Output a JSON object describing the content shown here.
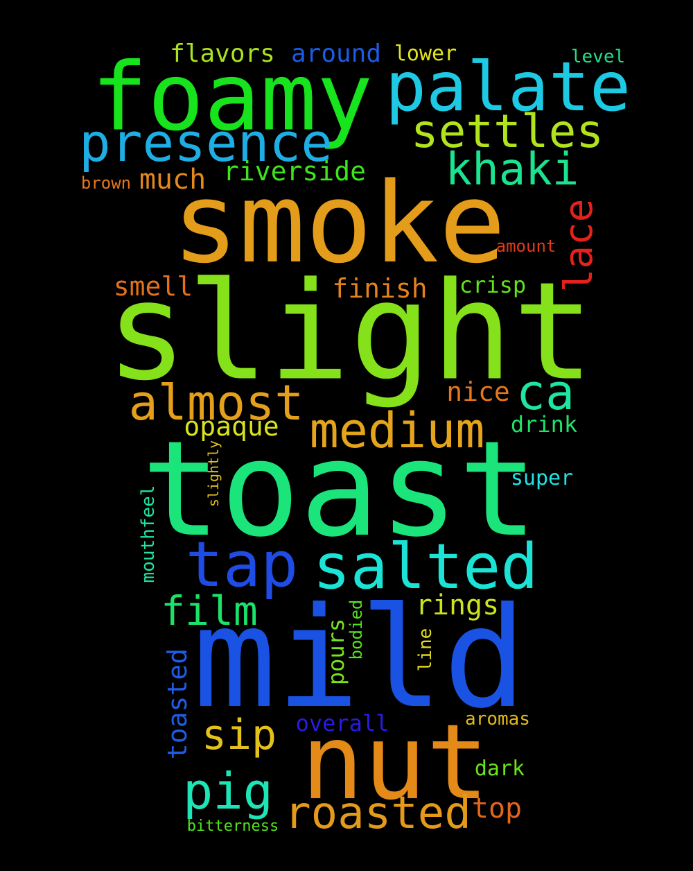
{
  "words": {
    "slight": {
      "text": "slight",
      "color": "#84e11a"
    },
    "smoke": {
      "text": "smoke",
      "color": "#e49c1b"
    },
    "toast": {
      "text": "toast",
      "color": "#1be57a"
    },
    "mild": {
      "text": "mild",
      "color": "#1a53e4"
    },
    "foamy": {
      "text": "foamy",
      "color": "#17e41c"
    },
    "nut": {
      "text": "nut",
      "color": "#e48a18"
    },
    "palate": {
      "text": "palate",
      "color": "#1ec9e4"
    },
    "presence": {
      "text": "presence",
      "color": "#1eaee4"
    },
    "settles": {
      "text": "settles",
      "color": "#b2e41b"
    },
    "khaki": {
      "text": "khaki",
      "color": "#1ce391"
    },
    "salted": {
      "text": "salted",
      "color": "#1be3d6"
    },
    "tap": {
      "text": "tap",
      "color": "#1f4ce4"
    },
    "medium": {
      "text": "medium",
      "color": "#e4a41c"
    },
    "almost": {
      "text": "almost",
      "color": "#e4a01b"
    },
    "ca": {
      "text": "ca",
      "color": "#1fe4a4"
    },
    "roasted": {
      "text": "roasted",
      "color": "#e49a1a"
    },
    "pig": {
      "text": "pig",
      "color": "#1ee4b6"
    },
    "lace": {
      "text": "lace",
      "color": "#e4211b"
    },
    "film": {
      "text": "film",
      "color": "#1be36a"
    },
    "sip": {
      "text": "sip",
      "color": "#e4c21c"
    },
    "riverside": {
      "text": "riverside",
      "color": "#3ee41c"
    },
    "much": {
      "text": "much",
      "color": "#e4891a"
    },
    "smell": {
      "text": "smell",
      "color": "#e4701b"
    },
    "finish": {
      "text": "finish",
      "color": "#e4831b"
    },
    "opaque": {
      "text": "opaque",
      "color": "#d9e41c"
    },
    "toasted": {
      "text": "toasted",
      "color": "#1f5be4"
    },
    "rings": {
      "text": "rings",
      "color": "#cce41c"
    },
    "top": {
      "text": "top",
      "color": "#e4661b"
    },
    "flavors": {
      "text": "flavors",
      "color": "#a9e41c"
    },
    "around": {
      "text": "around",
      "color": "#1b5ce4"
    },
    "nice": {
      "text": "nice",
      "color": "#e4761b"
    },
    "crisp": {
      "text": "crisp",
      "color": "#62e41c"
    },
    "drink": {
      "text": "drink",
      "color": "#1fe46a"
    },
    "pours": {
      "text": "pours",
      "color": "#7ae41c"
    },
    "overall": {
      "text": "overall",
      "color": "#2a1ce4"
    },
    "super": {
      "text": "super",
      "color": "#1fe4e4"
    },
    "lower": {
      "text": "lower",
      "color": "#e4e41c"
    },
    "dark": {
      "text": "dark",
      "color": "#6ae41c"
    },
    "aromas": {
      "text": "aromas",
      "color": "#e4ba1c"
    },
    "mouthfeel": {
      "text": "mouthfeel",
      "color": "#1fe4a4"
    },
    "line": {
      "text": "line",
      "color": "#e4dc1c"
    },
    "bodied": {
      "text": "bodied",
      "color": "#52e41c"
    },
    "brown": {
      "text": "brown",
      "color": "#e4761b"
    },
    "amount": {
      "text": "amount",
      "color": "#e43a1b"
    },
    "level": {
      "text": "level",
      "color": "#1fe48a"
    },
    "bitterness": {
      "text": "bitterness",
      "color": "#52e41c"
    },
    "slightly": {
      "text": "slightly",
      "color": "#e4c21c"
    }
  }
}
